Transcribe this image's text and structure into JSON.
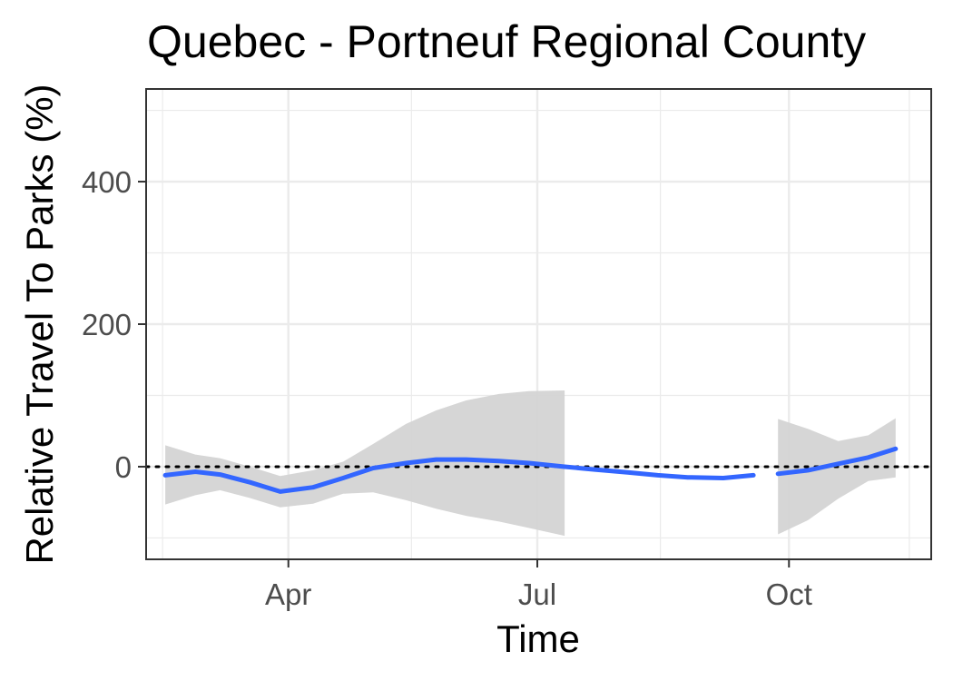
{
  "chart_data": {
    "type": "line",
    "title": "Quebec - Portneuf Regional County",
    "xlabel": "Time",
    "ylabel": "Relative Travel To Parks (%)",
    "x_ticks": [
      "Apr",
      "Jul",
      "Oct"
    ],
    "y_ticks": [
      0,
      200,
      400
    ],
    "xlim": [
      "2020-02-09",
      "2020-11-22"
    ],
    "ylim": [
      -130,
      530
    ],
    "grid": true,
    "legend": "none",
    "reference_line": {
      "y": 0,
      "style": "dotted",
      "color": "#000000"
    },
    "colors": {
      "line": "#3366ff",
      "ribbon": "#d3d3d3",
      "panel_border": "#333333",
      "grid": "#ebebeb"
    },
    "series": [
      {
        "segments": [
          {
            "points": [
              {
                "x": "2020-02-16",
                "y": -12,
                "lo": -53,
                "hi": 30
              },
              {
                "x": "2020-02-27",
                "y": -7,
                "lo": -40,
                "hi": 17
              },
              {
                "x": "2020-03-07",
                "y": -11,
                "lo": -33,
                "hi": 12
              },
              {
                "x": "2020-03-18",
                "y": -22,
                "lo": -44,
                "hi": 0
              },
              {
                "x": "2020-03-29",
                "y": -35,
                "lo": -57,
                "hi": -13
              },
              {
                "x": "2020-04-10",
                "y": -29,
                "lo": -52,
                "hi": -5
              },
              {
                "x": "2020-04-21",
                "y": -16,
                "lo": -38,
                "hi": 7
              },
              {
                "x": "2020-05-02",
                "y": -2,
                "lo": -36,
                "hi": 32
              },
              {
                "x": "2020-05-14",
                "y": 5,
                "lo": -47,
                "hi": 60
              },
              {
                "x": "2020-05-25",
                "y": 10,
                "lo": -59,
                "hi": 79
              },
              {
                "x": "2020-06-05",
                "y": 10,
                "lo": -69,
                "hi": 93
              },
              {
                "x": "2020-06-17",
                "y": 8,
                "lo": -77,
                "hi": 102
              },
              {
                "x": "2020-06-28",
                "y": 5,
                "lo": -86,
                "hi": 106
              },
              {
                "x": "2020-07-11",
                "y": 0,
                "lo": -97,
                "hi": 107
              }
            ]
          },
          {
            "points": [
              {
                "x": "2020-07-11",
                "y": 0
              },
              {
                "x": "2020-07-22",
                "y": -4
              },
              {
                "x": "2020-08-03",
                "y": -8
              },
              {
                "x": "2020-08-14",
                "y": -12
              },
              {
                "x": "2020-08-25",
                "y": -15
              },
              {
                "x": "2020-09-07",
                "y": -16
              },
              {
                "x": "2020-09-18",
                "y": -12
              }
            ]
          },
          {
            "points": [
              {
                "x": "2020-09-27",
                "y": -10,
                "lo": -95,
                "hi": 67
              },
              {
                "x": "2020-10-08",
                "y": -5,
                "lo": -75,
                "hi": 53
              },
              {
                "x": "2020-10-19",
                "y": 4,
                "lo": -45,
                "hi": 36
              },
              {
                "x": "2020-10-30",
                "y": 13,
                "lo": -20,
                "hi": 44
              },
              {
                "x": "2020-11-09",
                "y": 25,
                "lo": -15,
                "hi": 68
              }
            ]
          }
        ]
      }
    ]
  }
}
